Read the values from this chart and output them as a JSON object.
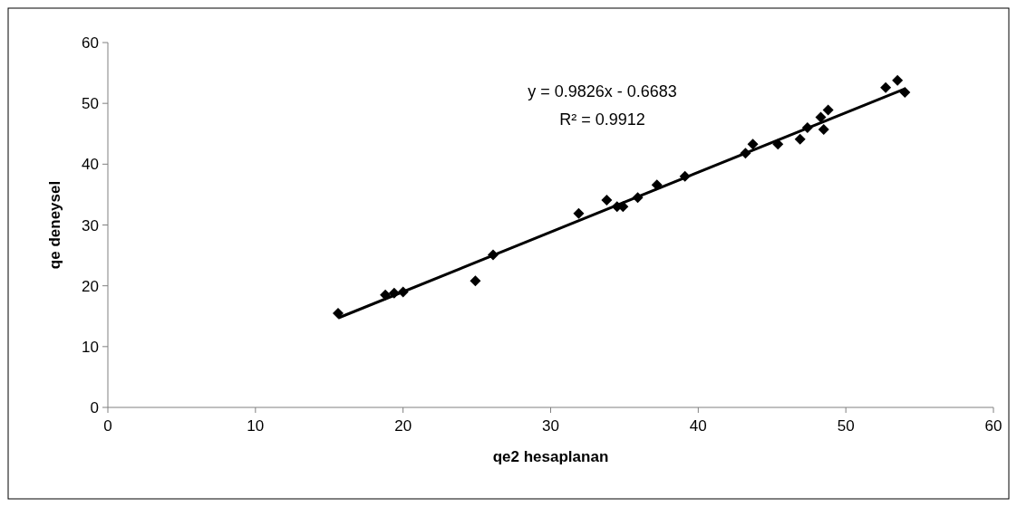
{
  "chart_data": {
    "type": "scatter",
    "xlabel": "qe2 hesaplanan",
    "ylabel": "qe deneysel",
    "xlim": [
      0,
      60
    ],
    "ylim": [
      0,
      60
    ],
    "xticks": [
      0,
      10,
      20,
      30,
      40,
      50,
      60
    ],
    "yticks": [
      0,
      10,
      20,
      30,
      40,
      50,
      60
    ],
    "grid": false,
    "annotations": [
      "y = 0.9826x - 0.6683",
      "R² = 0.9912"
    ],
    "series": [
      {
        "color": "#000000",
        "marker": "diamond",
        "x": [
          15.6,
          18.8,
          19.4,
          20.0,
          24.9,
          26.1,
          31.9,
          33.8,
          34.5,
          34.9,
          35.9,
          37.2,
          39.1,
          43.2,
          43.7,
          45.4,
          46.9,
          47.4,
          48.3,
          48.8,
          48.5,
          52.7,
          53.5,
          54.0
        ],
        "values": [
          15.5,
          18.5,
          18.8,
          19.0,
          20.8,
          25.1,
          31.9,
          34.1,
          33.0,
          33.0,
          34.5,
          36.6,
          38.0,
          41.8,
          43.3,
          43.3,
          44.1,
          46.0,
          47.7,
          48.9,
          45.7,
          52.6,
          53.8,
          51.8
        ]
      },
      {
        "type": "line",
        "color": "#000000",
        "x": [
          15.6,
          54.0
        ],
        "values": [
          14.7,
          52.4
        ]
      }
    ]
  }
}
